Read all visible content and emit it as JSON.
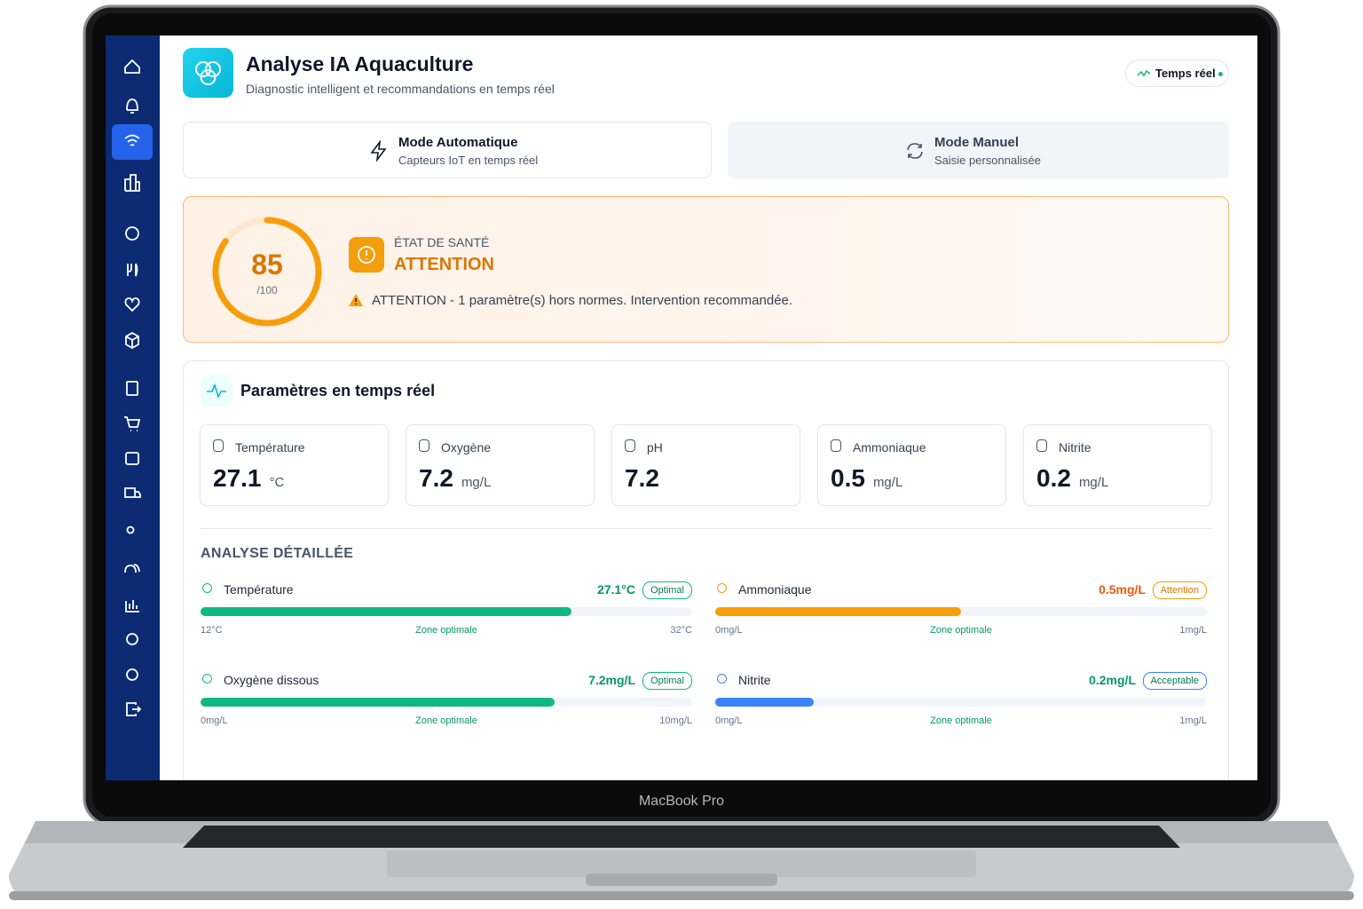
{
  "device_label": "MacBook Pro",
  "header": {
    "title": "Analyse IA Aquaculture",
    "subtitle": "Diagnostic intelligent et recommandations en temps réel",
    "live_badge": "Temps réel"
  },
  "modes": [
    {
      "title": "Mode Automatique",
      "subtitle": "Capteurs IoT en temps réel",
      "active": true
    },
    {
      "title": "Mode Manuel",
      "subtitle": "Saisie personnalisée",
      "active": false
    }
  ],
  "health": {
    "score": 85,
    "score_max": {
      "value": 100,
      "label": "/100"
    },
    "label": "ÉTAT DE SANTÉ",
    "status": "ATTENTION",
    "message": "ATTENTION - 1 paramètre(s) hors normes. Intervention recommandée.",
    "color": "#f59e0b"
  },
  "parameters": {
    "title": "Paramètres en temps réel",
    "items": [
      {
        "name": "Température",
        "value": 27.1,
        "unit": "°C"
      },
      {
        "name": "Oxygène",
        "value": 7.2,
        "unit": "mg/L"
      },
      {
        "name": "pH",
        "value": 7.2
      },
      {
        "name": "Ammoniaque",
        "value": 0.5,
        "unit": "mg/L"
      },
      {
        "name": "Nitrite",
        "value": 0.2,
        "unit": "mg/L"
      }
    ]
  },
  "analysis": {
    "title": "ANALYSE DÉTAILLÉE",
    "zone_label": "Zone optimale",
    "items": [
      {
        "name": "Température",
        "value": 27.1,
        "value_label": "27.1°C",
        "status": "Optimal",
        "color": "#10b981",
        "min": {
          "value": 12,
          "label": "12°C"
        },
        "max": {
          "value": 32,
          "label": "32°C"
        }
      },
      {
        "name": "Ammoniaque",
        "value": 0.5,
        "value_label": "0.5mg/L",
        "status": "Attention",
        "color": "#f59e0b",
        "min": {
          "value": 0,
          "label": "0mg/L"
        },
        "max": {
          "value": 1,
          "label": "1mg/L"
        }
      },
      {
        "name": "Oxygène dissous",
        "value": 7.2,
        "value_label": "7.2mg/L",
        "status": "Optimal",
        "color": "#10b981",
        "min": {
          "value": 0,
          "label": "0mg/L"
        },
        "max": {
          "value": 10,
          "label": "10mg/L"
        }
      },
      {
        "name": "Nitrite",
        "value": 0.2,
        "value_label": "0.2mg/L",
        "status": "Acceptable",
        "color": "#3b82f6",
        "min": {
          "value": 0,
          "label": "0mg/L"
        },
        "max": {
          "value": 1,
          "label": "1mg/L"
        }
      }
    ]
  }
}
